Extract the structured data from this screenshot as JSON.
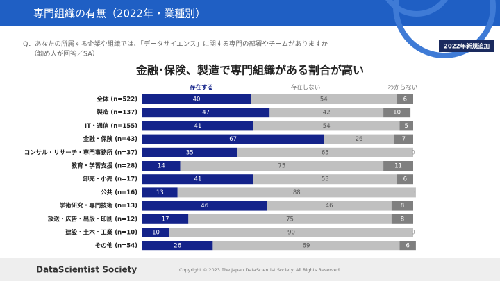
{
  "header": {
    "title": "専門組織の有無（2022年・業種別）"
  },
  "question": [
    "Q．あなたの所属する企業や組織では、「データサイエンス」に関する専門の部署やチームがありますか",
    "（勤め人が回答／SA）"
  ],
  "badge": "2022年新規追加",
  "footer": {
    "logo": "DataScientist Society",
    "copyright": "Copyright © 2023  The Japan DataScientist Society. All Rights Reserved."
  },
  "chart_data": {
    "type": "stacked-bar",
    "orientation": "horizontal",
    "title": "金融･保険、製造で専門組織がある割合が高い",
    "categories": [
      "全体 (n=522)",
      "製造 (n=137)",
      "IT・通信 (n=155)",
      "金融・保険 (n=43)",
      "コンサル・リサーチ・専門事務所 (n=37)",
      "教育・学習支援 (n=28)",
      "卸売・小売 (n=17)",
      "公共 (n=16)",
      "学術研究・専門技術 (n=13)",
      "放送・広告・出版・印刷 (n=12)",
      "建設・土木・工業 (n=10)",
      "その他 (n=54)"
    ],
    "xlim": [
      0,
      100
    ],
    "series": [
      {
        "name": "存在する",
        "color": "#14238a",
        "values": [
          40,
          47,
          41,
          67,
          35,
          14,
          41,
          13,
          46,
          17,
          10,
          26
        ]
      },
      {
        "name": "存在しない",
        "color": "#c0c0c0",
        "values": [
          54,
          42,
          54,
          26,
          65,
          75,
          53,
          88,
          46,
          75,
          90,
          69
        ]
      },
      {
        "name": "わからない",
        "color": "#7f7f7f",
        "values": [
          6,
          10,
          5,
          7,
          0,
          11,
          6,
          0,
          8,
          8,
          0,
          6
        ]
      }
    ]
  }
}
